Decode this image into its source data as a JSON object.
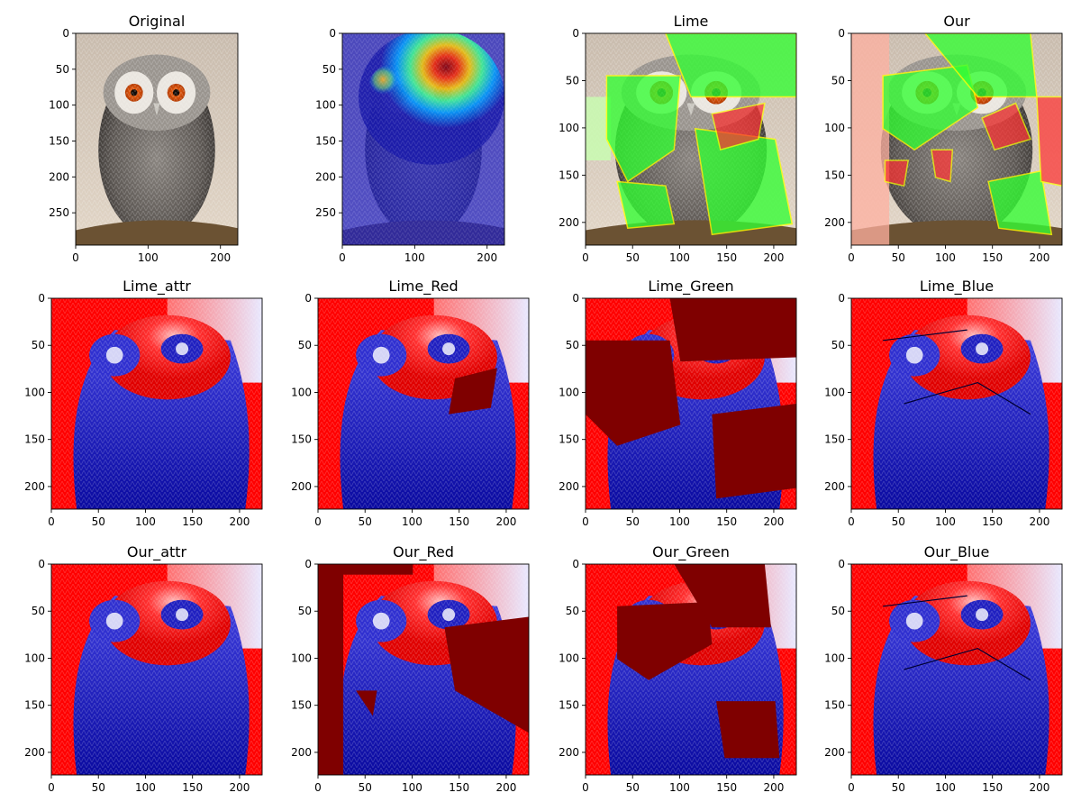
{
  "figure": {
    "rows": 3,
    "cols": 4
  },
  "chart_data": [
    {
      "type": "image",
      "title": "Original",
      "image": "photo of a white-faced scops owl with orange eyes perched on a branch",
      "xlim": [
        0,
        224
      ],
      "ylim": [
        295,
        0
      ],
      "xticks": [
        0,
        100,
        200
      ],
      "yticks": [
        0,
        50,
        100,
        150,
        200,
        250
      ]
    },
    {
      "type": "image",
      "title": "",
      "image": "owl photo overlaid with a jet-colormap heatmap, hot spot over the right eye",
      "xlim": [
        0,
        224
      ],
      "ylim": [
        295,
        0
      ],
      "xticks": [
        0,
        100,
        200
      ],
      "yticks": [
        0,
        50,
        100,
        150,
        200,
        250
      ]
    },
    {
      "type": "image",
      "title": "Lime",
      "image": "owl photo with LIME superpixels tinted green and red, yellow boundaries",
      "xlim": [
        0,
        224
      ],
      "ylim": [
        224,
        0
      ],
      "xticks": [
        0,
        50,
        100,
        150,
        200
      ],
      "yticks": [
        0,
        50,
        100,
        150,
        200
      ]
    },
    {
      "type": "image",
      "title": "Our",
      "image": "owl photo with superpixels tinted green and red, pink background, yellow boundaries",
      "xlim": [
        0,
        224
      ],
      "ylim": [
        224,
        0
      ],
      "xticks": [
        0,
        50,
        100,
        150,
        200
      ],
      "yticks": [
        0,
        50,
        100,
        150,
        200
      ]
    },
    {
      "type": "heatmap",
      "title": "Lime_attr",
      "image": "bwr attribution map of the owl",
      "xlim": [
        0,
        224
      ],
      "ylim": [
        224,
        0
      ],
      "xticks": [
        0,
        50,
        100,
        150,
        200
      ],
      "yticks": [
        0,
        50,
        100,
        150,
        200
      ]
    },
    {
      "type": "heatmap",
      "title": "Lime_Red",
      "image": "red-channel attribution map with segment boundaries",
      "xlim": [
        0,
        224
      ],
      "ylim": [
        224,
        0
      ],
      "xticks": [
        0,
        50,
        100,
        150,
        200
      ],
      "yticks": [
        0,
        50,
        100,
        150,
        200
      ]
    },
    {
      "type": "heatmap",
      "title": "Lime_Green",
      "image": "green-channel attribution map, large dark red segments",
      "xlim": [
        0,
        224
      ],
      "ylim": [
        224,
        0
      ],
      "xticks": [
        0,
        50,
        100,
        150,
        200
      ],
      "yticks": [
        0,
        50,
        100,
        150,
        200
      ]
    },
    {
      "type": "heatmap",
      "title": "Lime_Blue",
      "image": "blue-channel attribution map with segment boundaries",
      "xlim": [
        0,
        224
      ],
      "ylim": [
        224,
        0
      ],
      "xticks": [
        0,
        50,
        100,
        150,
        200
      ],
      "yticks": [
        0,
        50,
        100,
        150,
        200
      ]
    },
    {
      "type": "heatmap",
      "title": "Our_attr",
      "image": "bwr attribution map of the owl",
      "xlim": [
        0,
        224
      ],
      "ylim": [
        224,
        0
      ],
      "xticks": [
        0,
        50,
        100,
        150,
        200
      ],
      "yticks": [
        0,
        50,
        100,
        150,
        200
      ]
    },
    {
      "type": "heatmap",
      "title": "Our_Red",
      "image": "red-channel attribution map, dark red background and segments",
      "xlim": [
        0,
        224
      ],
      "ylim": [
        224,
        0
      ],
      "xticks": [
        0,
        50,
        100,
        150,
        200
      ],
      "yticks": [
        0,
        50,
        100,
        150,
        200
      ]
    },
    {
      "type": "heatmap",
      "title": "Our_Green",
      "image": "green-channel attribution map, dark red segments",
      "xlim": [
        0,
        224
      ],
      "ylim": [
        224,
        0
      ],
      "xticks": [
        0,
        50,
        100,
        150,
        200
      ],
      "yticks": [
        0,
        50,
        100,
        150,
        200
      ]
    },
    {
      "type": "heatmap",
      "title": "Our_Blue",
      "image": "blue-channel attribution map with segment boundaries",
      "xlim": [
        0,
        224
      ],
      "ylim": [
        224,
        0
      ],
      "xticks": [
        0,
        50,
        100,
        150,
        200
      ],
      "yticks": [
        0,
        50,
        100,
        150,
        200
      ]
    }
  ],
  "colors": {
    "attr_positive": "#ff0000",
    "attr_negative": "#0000cc",
    "attr_saturated": "#7f0000",
    "segment_boundary": "#ffff00",
    "lime_positive": "#33ff33",
    "lime_negative": "#ff3333",
    "axis": "#000000"
  }
}
